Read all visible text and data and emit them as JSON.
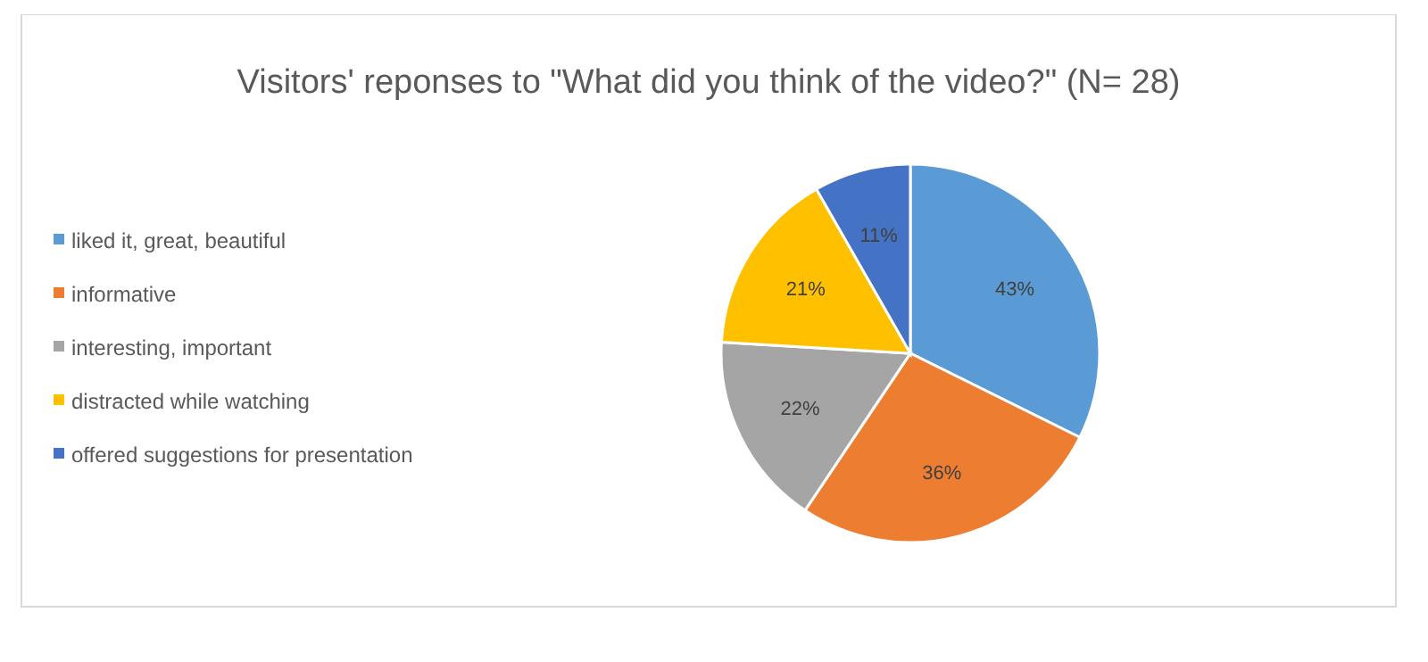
{
  "chart_data": {
    "type": "pie",
    "title": "Visitors' reponses to \"What did you think of the video?\"   (N= 28)",
    "categories": [
      "liked it, great, beautiful",
      "informative",
      "interesting, important",
      "distracted while watching",
      "offered suggestions for presentation"
    ],
    "values": [
      43,
      36,
      22,
      21,
      11
    ],
    "value_labels": [
      "43%",
      "36%",
      "22%",
      "21%",
      "11%"
    ],
    "colors": [
      "#5b9bd5",
      "#ed7d31",
      "#a5a5a5",
      "#ffc000",
      "#4472c4"
    ],
    "legend": "left"
  }
}
